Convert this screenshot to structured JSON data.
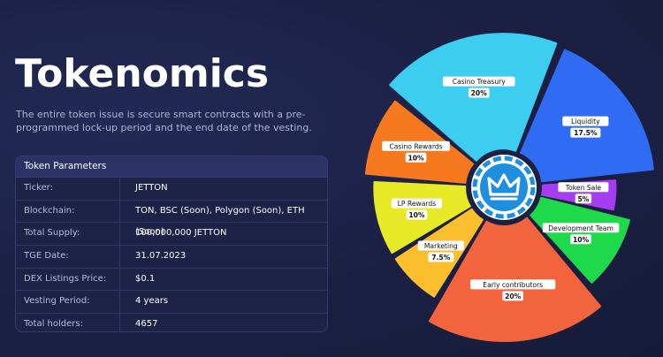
{
  "page": {
    "title": "Tokenomics",
    "subtitle": "The entire token issue is secure smart contracts with a pre-programmed lock-up period and the end date of the vesting."
  },
  "params": {
    "header": "Token Parameters",
    "rows": [
      {
        "label": "Ticker:",
        "value": "JETTON"
      },
      {
        "label": "Blockchain:",
        "value": "TON, BSC (Soon), Polygon (Soon), ETH (Soon)"
      },
      {
        "label": "Total Supply:",
        "value": "100,000,000 JETTON"
      },
      {
        "label": "TGE Date:",
        "value": "31.07.2023"
      },
      {
        "label": "DEX Listings Price:",
        "value": "$0.1"
      },
      {
        "label": "Vesting Period:",
        "value": "4 years"
      },
      {
        "label": "Total holders:",
        "value": "4657"
      }
    ]
  },
  "chart_data": {
    "type": "pie",
    "center_logo": "crown-icon",
    "slices": [
      {
        "name": "Casino Treasury",
        "value_label": "20%",
        "value": 20,
        "color": "#3ccdf0"
      },
      {
        "name": "Liquidity",
        "value_label": "17.5%",
        "value": 17.5,
        "color": "#2f6bf3"
      },
      {
        "name": "Token Sale",
        "value_label": "5%",
        "value": 5,
        "color": "#a53df0"
      },
      {
        "name": "Development Team",
        "value_label": "10%",
        "value": 10,
        "color": "#1ed94a"
      },
      {
        "name": "Early contributors",
        "value_label": "20%",
        "value": 20,
        "color": "#f2643d"
      },
      {
        "name": "Marketing",
        "value_label": "7.5%",
        "value": 7.5,
        "color": "#fbbf2e"
      },
      {
        "name": "LP Rewards",
        "value_label": "10%",
        "value": 10,
        "color": "#e9ea27"
      },
      {
        "name": "Casino Rewards",
        "value_label": "10%",
        "value": 10,
        "color": "#f6791f"
      }
    ]
  }
}
